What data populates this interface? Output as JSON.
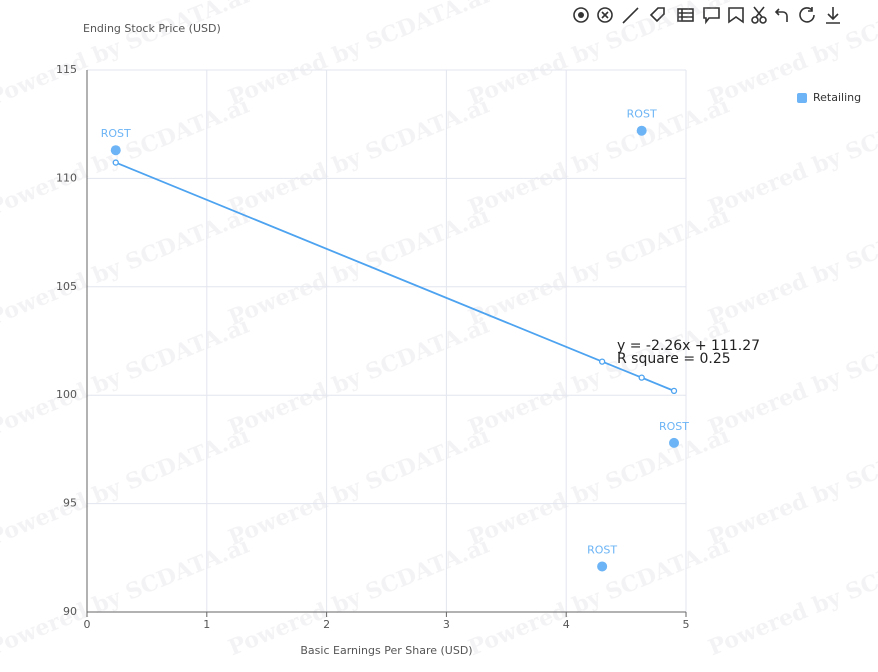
{
  "chart_data": {
    "type": "scatter",
    "y_axis_title": "Ending Stock Price (USD)",
    "x_axis_title": "Basic Earnings Per Share (USD)",
    "watermark": "Powered by SCDATA.ai",
    "xlim": [
      0,
      5
    ],
    "xticks": [
      0,
      1,
      2,
      3,
      4,
      5
    ],
    "ylim": [
      90,
      115
    ],
    "yticks": [
      90,
      95,
      100,
      105,
      110,
      115
    ],
    "grid": true,
    "legend": "top-right",
    "series": [
      {
        "name": "Retailing",
        "color": "#6cb4f5",
        "x": [
          0.24,
          4.63,
          4.9,
          4.3
        ],
        "values": [
          111.3,
          112.2,
          97.8,
          92.1
        ],
        "labels": [
          "ROST",
          "ROST",
          "ROST",
          "ROST"
        ]
      }
    ],
    "trendline": {
      "color": "#4da3f0",
      "x": [
        0.24,
        4.3,
        4.63,
        4.9
      ],
      "values": [
        110.73,
        101.55,
        100.81,
        100.2
      ]
    },
    "annotations": [
      "y = -2.26x + 111.27",
      "R square = 0.25"
    ]
  }
}
